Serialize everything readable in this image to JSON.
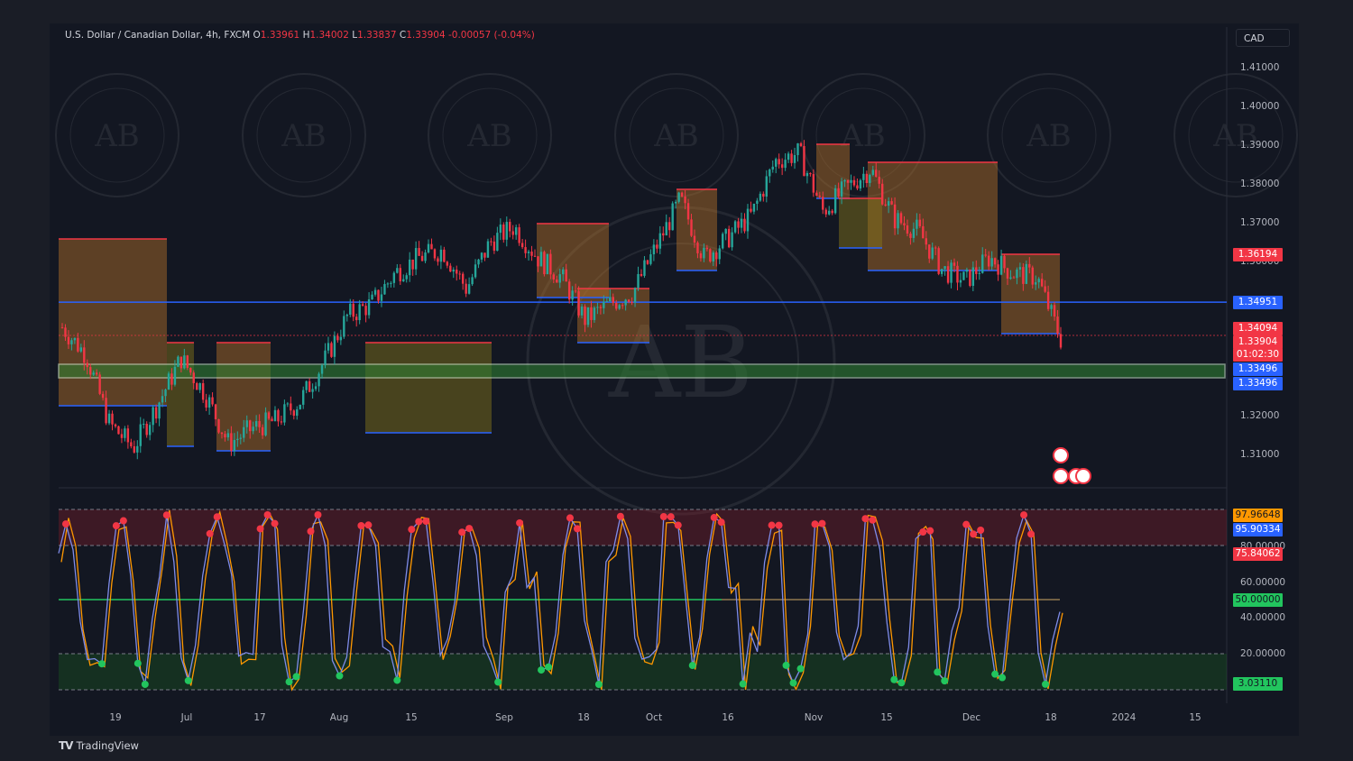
{
  "header": {
    "symbol": "U.S. Dollar / Canadian Dollar, 4h, FXCM",
    "open_label": "O",
    "open": "1.33961",
    "high_label": "H",
    "high": "1.34002",
    "low_label": "L",
    "low": "1.33837",
    "close_label": "C",
    "close": "1.33904",
    "change": "-0.00057 (-0.04%)"
  },
  "currency_button": "CAD",
  "price_axis": [
    "1.41000",
    "1.40000",
    "1.39000",
    "1.38000",
    "1.37000",
    "1.36000",
    "1.32000",
    "1.31000"
  ],
  "price_tags": {
    "resistance": "1.36194",
    "support_mid": "1.34951",
    "prev_high": "1.34094",
    "last": "1.33904",
    "countdown": "01:02:30",
    "zone_top": "1.33496",
    "zone_bottom": "1.33496"
  },
  "osc_axis": [
    "80.00000",
    "60.00000",
    "40.00000",
    "20.00000"
  ],
  "osc_tags": {
    "v1": "97.96648",
    "v2": "95.90334",
    "v3": "75.84062",
    "mid": "50.00000",
    "low": "3.03110"
  },
  "time_axis": [
    "19",
    "Jul",
    "17",
    "Aug",
    "15",
    "Sep",
    "18",
    "Oct",
    "16",
    "Nov",
    "15",
    "Dec",
    "18",
    "2024",
    "15"
  ],
  "watermark": {
    "logo": "AB",
    "ring": "ARABIAN BUSINESS ACADEMY"
  },
  "branding": {
    "logo": "TV",
    "name": "TradingView"
  },
  "colors": {
    "up": "#26a69a",
    "down": "#f23645",
    "blue": "#2962ff",
    "green_zone": "#4caf50",
    "orange": "#ff9800",
    "bg": "#131722"
  },
  "chart_data": {
    "type": "candlestick",
    "symbol": "USDCAD",
    "timeframe": "4h",
    "x_labels": [
      "19",
      "Jul",
      "17",
      "Aug",
      "15",
      "Sep",
      "18",
      "Oct",
      "16",
      "Nov",
      "15",
      "Dec",
      "18",
      "2024",
      "15"
    ],
    "ylim": [
      1.305,
      1.415
    ],
    "close_path": [
      [
        "Jun 12",
        1.343
      ],
      [
        "19",
        1.336
      ],
      [
        "Jun 22",
        1.318
      ],
      [
        "Jun 28",
        1.312
      ],
      [
        "Jul",
        1.323
      ],
      [
        "Jul 7",
        1.335
      ],
      [
        "Jul 10",
        1.326
      ],
      [
        "17",
        1.313
      ],
      [
        "Jul 21",
        1.317
      ],
      [
        "Jul 25",
        1.319
      ],
      [
        "Jul 28",
        1.324
      ],
      [
        "Aug",
        1.334
      ],
      [
        "Aug 7",
        1.346
      ],
      [
        "Aug 10",
        1.349
      ],
      [
        "15",
        1.357
      ],
      [
        "Aug 20",
        1.361
      ],
      [
        "Aug 24",
        1.363
      ],
      [
        "Aug 28",
        1.353
      ],
      [
        "Sep",
        1.365
      ],
      [
        "Sep 5",
        1.369
      ],
      [
        "Sep 10",
        1.361
      ],
      [
        "Sep 14",
        1.356
      ],
      [
        "18",
        1.345
      ],
      [
        "Sep 22",
        1.349
      ],
      [
        "Sep 26",
        1.352
      ],
      [
        "Oct",
        1.364
      ],
      [
        "Oct 4",
        1.376
      ],
      [
        "Oct 8",
        1.361
      ],
      [
        "Oct 12",
        1.366
      ],
      [
        "16",
        1.372
      ],
      [
        "Oct 22",
        1.386
      ],
      [
        "Nov",
        1.388
      ],
      [
        "Nov 4",
        1.373
      ],
      [
        "Nov 8",
        1.379
      ],
      [
        "15",
        1.384
      ],
      [
        "Nov 19",
        1.371
      ],
      [
        "Nov 23",
        1.368
      ],
      [
        "Nov 27",
        1.358
      ],
      [
        "Dec",
        1.355
      ],
      [
        "Dec 4",
        1.361
      ],
      [
        "Dec 8",
        1.357
      ],
      [
        "Dec 12",
        1.356
      ],
      [
        "18",
        1.34
      ]
    ],
    "levels": {
      "resistance": 1.36194,
      "support": 1.34951,
      "zone": [
        1.33496,
        1.33496
      ]
    },
    "oscillator": {
      "range": [
        0,
        100
      ],
      "overbought": 80,
      "oversold": 20,
      "mid": 50,
      "last": [
        97.96648,
        95.90334,
        75.84062,
        3.0311
      ]
    }
  }
}
